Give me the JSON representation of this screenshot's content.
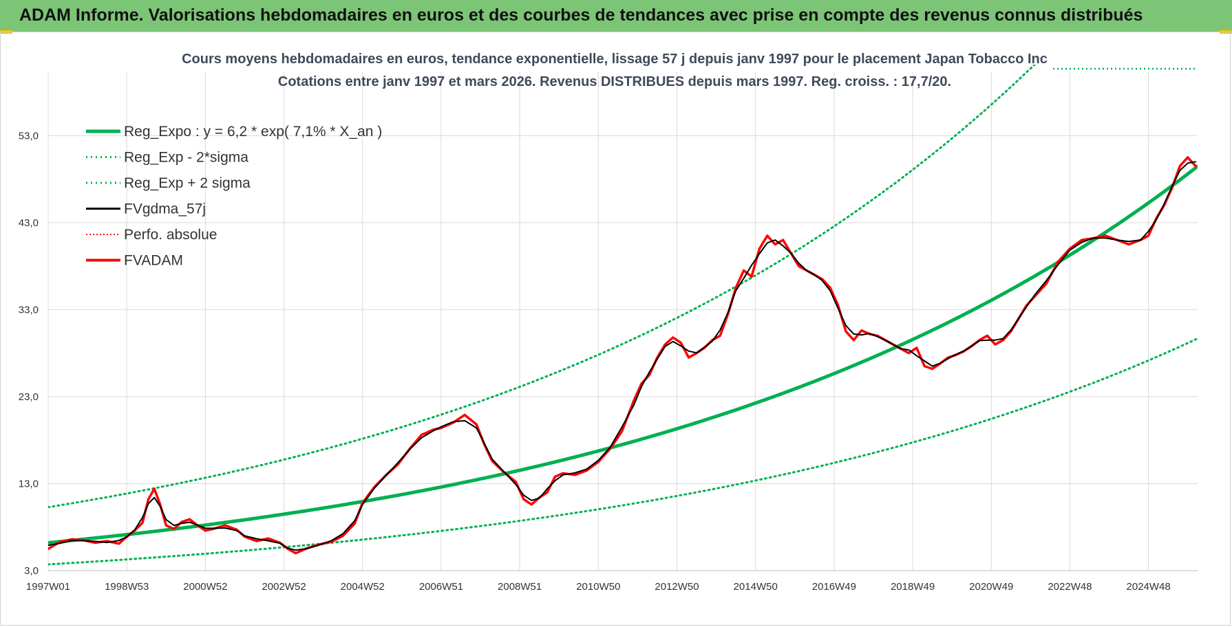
{
  "header": {
    "title": "ADAM Informe. Valorisations hebdomadaires en euros et des courbes de tendances avec prise en compte des revenus connus distribués"
  },
  "colors": {
    "header_bg": "#7cc576",
    "regression": "#00b050",
    "sigma": "#00b050",
    "gdma": "#000000",
    "perfo": "#ff0000",
    "fvadam": "#ff0000",
    "accent_corner": "#f2c200"
  },
  "chart_data": {
    "type": "line",
    "title": "Cours moyens hebdomadaires en euros, tendance exponentielle, lissage 57 j depuis janv 1997 pour le placement Japan Tobacco Inc",
    "subtitle": "Cotations entre janv 1997 et mars 2026. Revenus DISTRIBUES depuis mars 1997. Reg. croiss. : 17,7/20.",
    "xlabel": "",
    "ylabel": "",
    "ylim": [
      3,
      58
    ],
    "xlim": [
      1997.0,
      2026.25
    ],
    "yticks": [
      "3,0",
      "13,0",
      "23,0",
      "33,0",
      "43,0",
      "53,0"
    ],
    "ytick_values": [
      3,
      13,
      23,
      33,
      43,
      53
    ],
    "xtick_labels": [
      "1997W01",
      "1998W53",
      "2000W52",
      "2002W52",
      "2004W52",
      "2006W51",
      "2008W51",
      "2010W50",
      "2012W50",
      "2014W50",
      "2016W49",
      "2018W49",
      "2020W49",
      "2022W48",
      "2024W48"
    ],
    "xtick_values": [
      1997.0,
      1999.0,
      2001.0,
      2003.0,
      2005.0,
      2007.0,
      2009.0,
      2011.0,
      2013.0,
      2015.0,
      2017.0,
      2019.0,
      2021.0,
      2023.0,
      2025.0
    ],
    "grid": true,
    "legend_position": "top-left",
    "series": [
      {
        "name": "Reg_Expo : y = 6,2 * exp( 7,1% *  X_an )",
        "kind": "regression",
        "a": 6.2,
        "rate": 0.071,
        "x0": 1997.0,
        "factor": 1.0
      },
      {
        "name": "Reg_Exp - 2*sigma",
        "kind": "regression",
        "a": 6.2,
        "rate": 0.071,
        "x0": 1997.0,
        "factor": 0.6
      },
      {
        "name": "Reg_Exp + 2 sigma",
        "kind": "regression",
        "a": 6.2,
        "rate": 0.071,
        "x0": 1997.0,
        "factor": 1.66
      },
      {
        "name": "FVgdma_57j",
        "kind": "smoothed"
      },
      {
        "name": "Perfo. absolue",
        "kind": "price"
      },
      {
        "name": "FVADAM",
        "kind": "price",
        "x": [
          1997.0,
          1997.3,
          1997.6,
          1997.9,
          1998.2,
          1998.5,
          1998.8,
          1999.0,
          1999.2,
          1999.4,
          1999.55,
          1999.7,
          1999.85,
          2000.0,
          2000.2,
          2000.4,
          2000.6,
          2000.8,
          2001.0,
          2001.2,
          2001.5,
          2001.8,
          2002.0,
          2002.3,
          2002.6,
          2002.9,
          2003.1,
          2003.3,
          2003.6,
          2003.9,
          2004.2,
          2004.5,
          2004.8,
          2005.0,
          2005.3,
          2005.6,
          2005.9,
          2006.2,
          2006.5,
          2006.8,
          2007.0,
          2007.3,
          2007.6,
          2007.9,
          2008.1,
          2008.3,
          2008.6,
          2008.9,
          2009.1,
          2009.3,
          2009.5,
          2009.7,
          2009.9,
          2010.1,
          2010.4,
          2010.7,
          2011.0,
          2011.3,
          2011.6,
          2011.9,
          2012.1,
          2012.3,
          2012.5,
          2012.7,
          2012.9,
          2013.1,
          2013.3,
          2013.5,
          2013.7,
          2013.9,
          2014.1,
          2014.3,
          2014.5,
          2014.7,
          2014.9,
          2015.1,
          2015.3,
          2015.5,
          2015.7,
          2015.9,
          2016.1,
          2016.3,
          2016.5,
          2016.7,
          2016.9,
          2017.1,
          2017.3,
          2017.5,
          2017.7,
          2017.9,
          2018.1,
          2018.3,
          2018.5,
          2018.7,
          2018.9,
          2019.1,
          2019.3,
          2019.5,
          2019.7,
          2019.9,
          2020.1,
          2020.3,
          2020.5,
          2020.7,
          2020.9,
          2021.1,
          2021.3,
          2021.5,
          2021.7,
          2021.9,
          2022.1,
          2022.4,
          2022.7,
          2023.0,
          2023.3,
          2023.6,
          2023.9,
          2024.2,
          2024.5,
          2024.8,
          2025.0,
          2025.2,
          2025.4,
          2025.6,
          2025.8,
          2026.0,
          2026.2
        ],
        "values": [
          5.5,
          6.3,
          6.6,
          6.5,
          6.2,
          6.4,
          6.1,
          6.9,
          7.6,
          8.5,
          11.2,
          12.4,
          10.6,
          8.2,
          7.8,
          8.6,
          8.9,
          8.2,
          7.6,
          7.8,
          8.2,
          7.7,
          6.9,
          6.4,
          6.7,
          6.2,
          5.5,
          5.0,
          5.6,
          6.0,
          6.3,
          7.0,
          8.4,
          10.8,
          12.6,
          14.0,
          15.2,
          17.0,
          18.6,
          19.2,
          19.4,
          20.0,
          20.9,
          19.8,
          17.5,
          15.6,
          14.3,
          13.2,
          11.2,
          10.6,
          11.4,
          12.0,
          13.8,
          14.2,
          14.0,
          14.5,
          15.5,
          17.0,
          19.0,
          22.5,
          24.5,
          25.5,
          27.5,
          29.0,
          29.8,
          29.2,
          27.5,
          28.0,
          28.6,
          29.5,
          30.0,
          32.5,
          35.5,
          37.5,
          36.8,
          40.0,
          41.5,
          40.5,
          41.0,
          39.5,
          38.0,
          37.5,
          37.0,
          36.5,
          35.5,
          33.5,
          30.5,
          29.5,
          30.6,
          30.2,
          30.0,
          29.5,
          29.0,
          28.5,
          28.0,
          28.6,
          26.5,
          26.2,
          26.8,
          27.5,
          27.8,
          28.2,
          28.8,
          29.5,
          30.0,
          29.0,
          29.5,
          30.5,
          32.0,
          33.5,
          34.5,
          36.0,
          38.5,
          40.0,
          41.0,
          41.2,
          41.5,
          41.0,
          40.5,
          41.0,
          41.5,
          43.5,
          45.0,
          47.0,
          49.5,
          50.5,
          49.5
        ]
      }
    ]
  }
}
